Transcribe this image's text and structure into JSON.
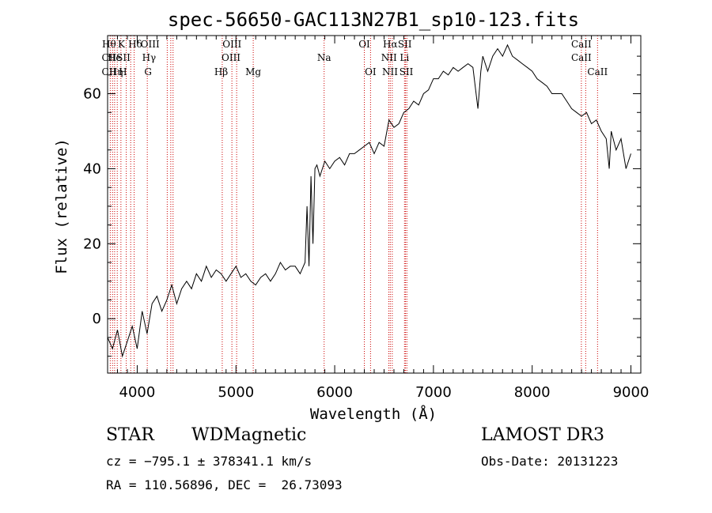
{
  "chart_data": {
    "type": "line",
    "title": "spec-56650-GAC113N27B1_sp10-123.fits",
    "xlabel": "Wavelength (Å)",
    "ylabel": "Flux (relative)",
    "xlim": [
      3700,
      9100
    ],
    "ylim": [
      -14.5,
      75.5
    ],
    "xticks": [
      4000,
      5000,
      6000,
      7000,
      8000,
      9000
    ],
    "yticks": [
      0,
      20,
      40,
      60
    ],
    "grid": false,
    "series": [
      {
        "x": [
          3700,
          3750,
          3800,
          3850,
          3900,
          3950,
          4000,
          4050,
          4100,
          4150,
          4200,
          4250,
          4300,
          4350,
          4400,
          4450,
          4500,
          4550,
          4600,
          4650,
          4700,
          4750,
          4800,
          4850,
          4900,
          4950,
          5000,
          5050,
          5100,
          5150,
          5200,
          5250,
          5300,
          5350,
          5400,
          5450,
          5500,
          5550,
          5600,
          5650,
          5700,
          5720,
          5740,
          5760,
          5780,
          5800,
          5820,
          5850,
          5900,
          5950,
          6000,
          6050,
          6100,
          6150,
          6200,
          6250,
          6300,
          6350,
          6400,
          6450,
          6500,
          6550,
          6600,
          6650,
          6700,
          6750,
          6800,
          6850,
          6900,
          6950,
          7000,
          7050,
          7100,
          7150,
          7200,
          7250,
          7300,
          7350,
          7400,
          7450,
          7480,
          7500,
          7550,
          7600,
          7650,
          7700,
          7750,
          7800,
          7850,
          7900,
          7950,
          8000,
          8050,
          8100,
          8150,
          8200,
          8250,
          8300,
          8350,
          8400,
          8450,
          8500,
          8550,
          8600,
          8650,
          8700,
          8750,
          8780,
          8800,
          8850,
          8900,
          8950,
          9000
        ],
        "y": [
          -5,
          -8,
          -3,
          -10,
          -6,
          -2,
          -8,
          2,
          -4,
          4,
          6,
          2,
          5,
          9,
          4,
          8,
          10,
          8,
          12,
          10,
          14,
          11,
          13,
          12,
          10,
          12,
          14,
          11,
          12,
          10,
          9,
          11,
          12,
          10,
          12,
          15,
          13,
          14,
          14,
          12,
          15,
          30,
          14,
          38,
          20,
          40,
          41,
          38,
          42,
          40,
          42,
          43,
          41,
          44,
          44,
          45,
          46,
          47,
          44,
          47,
          46,
          53,
          51,
          52,
          55,
          56,
          58,
          57,
          60,
          61,
          64,
          64,
          66,
          65,
          67,
          66,
          67,
          68,
          67,
          56,
          66,
          70,
          66,
          70,
          72,
          70,
          73,
          70,
          69,
          68,
          67,
          66,
          64,
          63,
          62,
          60,
          60,
          60,
          58,
          56,
          55,
          54,
          55,
          52,
          53,
          50,
          48,
          40,
          50,
          45,
          48,
          40,
          44
        ]
      }
    ],
    "annotations": [
      {
        "x": 3715,
        "label": "Hθ",
        "row": 1
      },
      {
        "x": 3715,
        "label": "CII",
        "row": 2
      },
      {
        "x": 3715,
        "label": "CII",
        "row": 3
      },
      {
        "x": 3770,
        "label": "He",
        "row": 2
      },
      {
        "x": 3785,
        "label": "Hη",
        "row": 3
      },
      {
        "x": 3840,
        "label": "K",
        "row": 1
      },
      {
        "x": 3855,
        "label": "H",
        "row": 3
      },
      {
        "x": 3860,
        "label": "SII",
        "row": 2
      },
      {
        "x": 3980,
        "label": "Hδ",
        "row": 1
      },
      {
        "x": 4130,
        "label": "OIII",
        "row": 1
      },
      {
        "x": 4120,
        "label": "Hγ",
        "row": 2
      },
      {
        "x": 4110,
        "label": "G",
        "row": 3
      },
      {
        "x": 4960,
        "label": "OIII",
        "row": 1
      },
      {
        "x": 4950,
        "label": "OIII",
        "row": 2
      },
      {
        "x": 4850,
        "label": "Hβ",
        "row": 3
      },
      {
        "x": 5175,
        "label": "Mg",
        "row": 3
      },
      {
        "x": 5893,
        "label": "Na",
        "row": 2
      },
      {
        "x": 6300,
        "label": "OI",
        "row": 1
      },
      {
        "x": 6363,
        "label": "OI",
        "row": 3
      },
      {
        "x": 6563,
        "label": "Hα",
        "row": 1
      },
      {
        "x": 6550,
        "label": "NII",
        "row": 2
      },
      {
        "x": 6560,
        "label": "NII",
        "row": 3
      },
      {
        "x": 6710,
        "label": "SII",
        "row": 1
      },
      {
        "x": 6707,
        "label": "Li",
        "row": 2
      },
      {
        "x": 6725,
        "label": "SII",
        "row": 3
      },
      {
        "x": 8498,
        "label": "CaII",
        "row": 1
      },
      {
        "x": 8498,
        "label": "CaII",
        "row": 2
      },
      {
        "x": 8662,
        "label": "CaII",
        "row": 3
      }
    ],
    "line_markers": [
      3727,
      3750,
      3771,
      3798,
      3835,
      3889,
      3934,
      3969,
      4102,
      4304,
      4340,
      4363,
      4861,
      4959,
      5007,
      5175,
      5893,
      6300,
      6363,
      6548,
      6563,
      6583,
      6707,
      6717,
      6731,
      8498,
      8542,
      8662
    ],
    "colors": {
      "spectrum": "#000000",
      "markers": "#cc0000",
      "axes": "#000000"
    }
  },
  "info": {
    "class_label": "STAR",
    "subclass_label": "WDMagnetic",
    "survey": "LAMOST DR3",
    "cz": "cz = −795.1 ± 378341.1 km/s",
    "obs_date": "Obs-Date: 20131223",
    "radec": "RA = 110.56896, DEC =  26.73093"
  }
}
